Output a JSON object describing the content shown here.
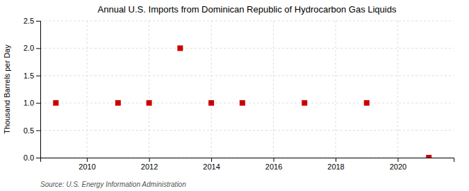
{
  "chart_data": {
    "type": "scatter",
    "title": "Annual U.S. Imports from Dominican Republic of Hydrocarbon Gas Liquids",
    "ylabel": "Thousand Barrels per Day",
    "source": "Source: U.S. Energy Information Administration",
    "x": [
      2009,
      2011,
      2012,
      2013,
      2014,
      2015,
      2017,
      2019,
      2021
    ],
    "values": [
      1.0,
      1.0,
      1.0,
      2.0,
      1.0,
      1.0,
      1.0,
      1.0,
      0.0
    ],
    "color": "#cc0000",
    "marker": "square",
    "xlim": [
      2008.5,
      2021.8
    ],
    "ylim": [
      0.0,
      2.5
    ],
    "xticks": [
      2010,
      2012,
      2014,
      2016,
      2018,
      2020
    ],
    "yticks": [
      {
        "value": 0.0,
        "label": "0.0"
      },
      0.5,
      {
        "value": 1.0,
        "label": "1.0"
      },
      1.5,
      {
        "value": 2.0,
        "label": "2.0"
      },
      2.5
    ],
    "grid": true
  }
}
